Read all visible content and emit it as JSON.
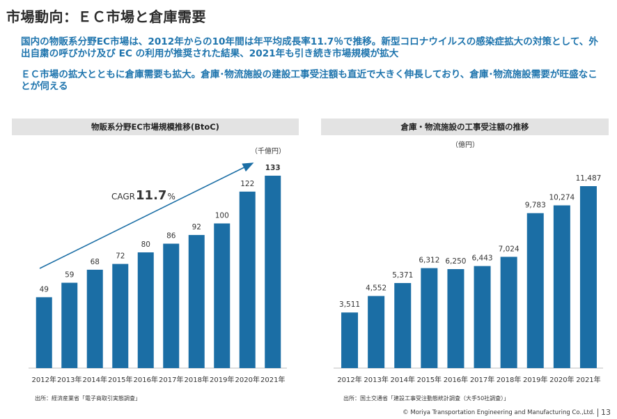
{
  "page": {
    "title": "市場動向：ＥＣ市場と倉庫需要",
    "paragraph1": "国内の物販系分野EC市場は、2012年からの10年間は年平均成長率11.7％で推移。新型コロナウイルスの感染症拡大の対策として、外出自粛の呼びかけ及び EC の利用が推奨された結果、2021年も引き続き市場規模が拡大",
    "paragraph2": "ＥＣ市場の拡大とともに倉庫需要も拡大。倉庫･物流施設の建設工事受注額も直近で大きく伸長しており、倉庫･物流施設需要が旺盛なことが伺える",
    "footer_copyright": "© Moriya Transportation Engineering and Manufacturing Co.,Ltd.",
    "page_number": "13"
  },
  "left_panel": {
    "heading": "物販系分野EC市場規模推移(BtoC)",
    "unit": "（千億円）",
    "cagr_prefix": "CAGR",
    "cagr_value": "11.7",
    "cagr_suffix": "%",
    "source": "出所：経済産業省「電子商取引実態調査」"
  },
  "right_panel": {
    "heading": "倉庫・物流施設の工事受注額の推移",
    "unit": "（億円）",
    "source": "出所：国土交通省「建設工事受注動態統計調査（大手50社調査）」"
  },
  "colors": {
    "bar": "#1b6ea5",
    "accent_text": "#1e74ad",
    "panel_header_bg": "#e3e3e3"
  },
  "chart_data": [
    {
      "type": "bar",
      "title": "物販系分野EC市場規模推移(BtoC)",
      "ylabel": "（千億円）",
      "categories": [
        "2012年",
        "2013年",
        "2014年",
        "2015年",
        "2016年",
        "2017年",
        "2018年",
        "2019年",
        "2020年",
        "2021年"
      ],
      "values": [
        49,
        59,
        68,
        72,
        80,
        86,
        92,
        100,
        122,
        133
      ],
      "labels": [
        "49",
        "59",
        "68",
        "72",
        "80",
        "86",
        "92",
        "100",
        "122",
        "133"
      ],
      "ylim": [
        0,
        145
      ],
      "annotation": "CAGR 11.7%",
      "grid": false
    },
    {
      "type": "bar",
      "title": "倉庫・物流施設の工事受注額の推移",
      "ylabel": "（億円）",
      "categories": [
        "2012年",
        "2013年",
        "2014年",
        "2015年",
        "2016年",
        "2017年",
        "2018年",
        "2019年",
        "2020年",
        "2021年"
      ],
      "values": [
        3511,
        4552,
        5371,
        6312,
        6250,
        6443,
        7024,
        9783,
        10274,
        11487
      ],
      "labels": [
        "3,511",
        "4,552",
        "5,371",
        "6,312",
        "6,250",
        "6,443",
        "7,024",
        "9,783",
        "10,274",
        "11,487"
      ],
      "ylim": [
        0,
        12900
      ],
      "grid": false
    }
  ]
}
